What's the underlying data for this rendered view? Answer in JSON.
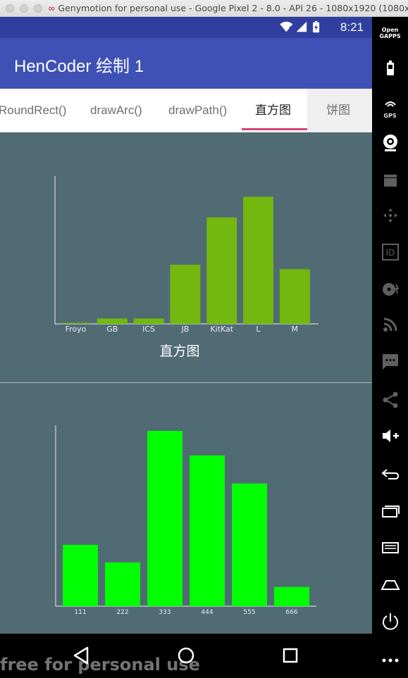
{
  "window": {
    "title": "Genymotion for personal use - Google Pixel 2 - 8.0 - API 26 - 1080x1920 (1080x...",
    "watermark": "free for personal use"
  },
  "status_bar": {
    "time": "8:21",
    "icons": [
      "wifi-icon",
      "signal-icon",
      "battery-icon"
    ]
  },
  "app_bar": {
    "title": "HenCoder 绘制 1"
  },
  "tabs": [
    {
      "label": "RoundRect()",
      "selected": false
    },
    {
      "label": "drawArc()",
      "selected": false
    },
    {
      "label": "drawPath()",
      "selected": false
    },
    {
      "label": "直方图",
      "selected": true
    },
    {
      "label": "饼图",
      "selected": false
    }
  ],
  "chart_caption": "直方图",
  "chart_data": [
    {
      "type": "bar",
      "categories": [
        "Froyo",
        "GB",
        "ICS",
        "JB",
        "KitKat",
        "L",
        "M"
      ],
      "values": [
        0.2,
        1.8,
        1.8,
        20,
        36,
        43,
        18.5
      ],
      "ylim": [
        0,
        50
      ],
      "color": "#72b80e",
      "grid": false
    },
    {
      "type": "bar",
      "categories": [
        "111",
        "222",
        "333",
        "444",
        "555",
        "666"
      ],
      "values": [
        35,
        25,
        100,
        86,
        70,
        11
      ],
      "ylim": [
        0,
        100
      ],
      "color": "#00ff00",
      "grid": false
    }
  ],
  "nav_bar": {
    "icons": [
      "back-icon",
      "home-icon",
      "recents-icon"
    ]
  },
  "side_toolbar": {
    "gapps_label_1": "Open",
    "gapps_label_2": "GAPPS",
    "gps_label": "GPS",
    "id_label": "ID",
    "icons": [
      "open-gapps-icon",
      "battery-icon",
      "gps-icon",
      "camera-icon",
      "video-icon",
      "move-icon",
      "id-icon",
      "disk-icon",
      "rss-icon",
      "sms-icon",
      "share-icon",
      "volume-up-icon",
      "volume-down-icon",
      "back-icon",
      "recents-icon",
      "menu-icon",
      "home-icon",
      "power-icon",
      "more-icon"
    ]
  }
}
